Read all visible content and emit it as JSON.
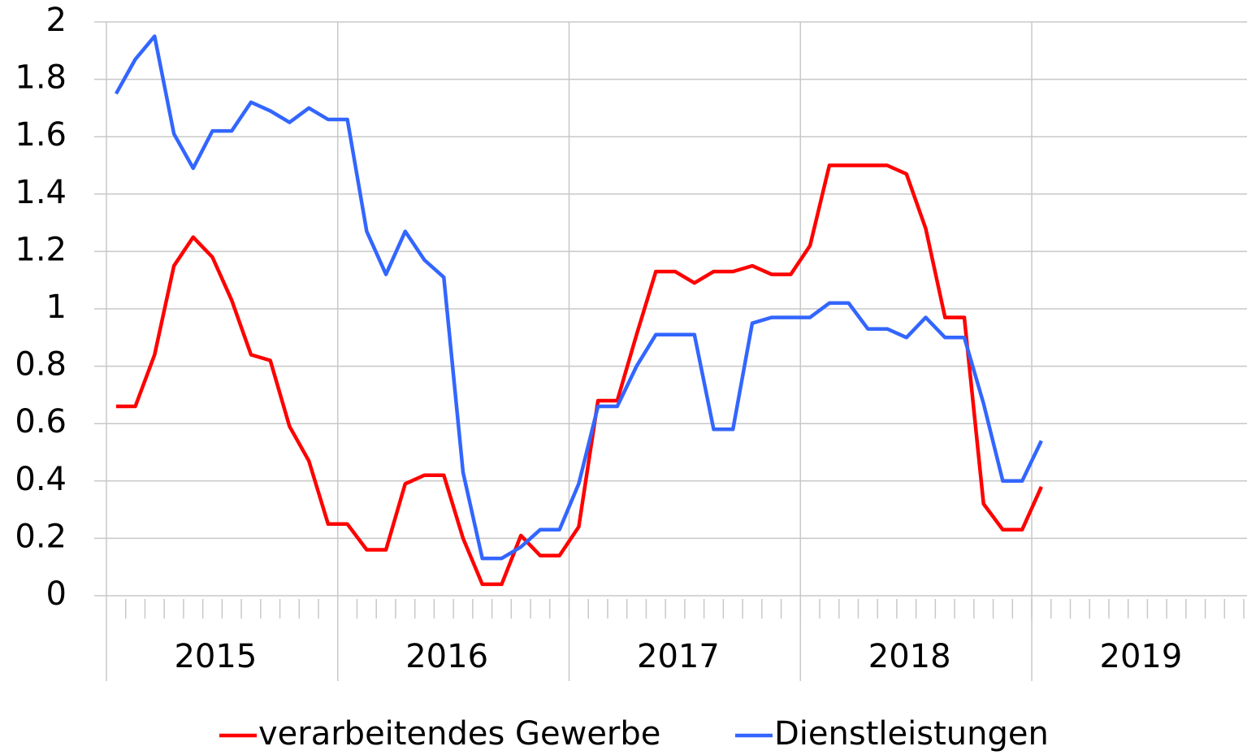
{
  "chart_data": {
    "type": "line",
    "categories": [
      null,
      null,
      null,
      null,
      null,
      null,
      null,
      null,
      null,
      null,
      null,
      null,
      null,
      null,
      null,
      null,
      null,
      null,
      null,
      null,
      null,
      null,
      null,
      null,
      null,
      null,
      null,
      null,
      null,
      null,
      null,
      null,
      null,
      null,
      null,
      null,
      null,
      null,
      null,
      null,
      null,
      null,
      null,
      null,
      null,
      null,
      null,
      null,
      null,
      null,
      null,
      null,
      null,
      null,
      null,
      null,
      null,
      null,
      null,
      null
    ],
    "groups": [
      {
        "label": "2015",
        "size": 12
      },
      {
        "label": "2016",
        "size": 12
      },
      {
        "label": "2017",
        "size": 12
      },
      {
        "label": "2018",
        "size": 12
      },
      {
        "label": "2019",
        "size": 12
      }
    ],
    "series": [
      {
        "name": "verarbeitendes Gewerbe",
        "color": "#ff0000",
        "values": [
          0.66,
          0.66,
          0.84,
          1.15,
          1.25,
          1.18,
          1.03,
          0.84,
          0.82,
          0.59,
          0.47,
          0.25,
          0.25,
          0.16,
          0.16,
          0.39,
          0.42,
          0.42,
          0.2,
          0.04,
          0.04,
          0.21,
          0.14,
          0.14,
          0.24,
          0.68,
          0.68,
          0.91,
          1.13,
          1.13,
          1.09,
          1.13,
          1.13,
          1.15,
          1.12,
          1.12,
          1.22,
          1.5,
          1.5,
          1.5,
          1.5,
          1.47,
          1.28,
          0.97,
          0.97,
          0.32,
          0.23,
          0.23,
          0.38,
          null,
          null,
          null,
          null,
          null,
          null,
          null,
          null,
          null,
          null,
          null
        ]
      },
      {
        "name": "Dienstleistungen",
        "color": "#3366ff",
        "values": [
          1.75,
          1.87,
          1.95,
          1.61,
          1.49,
          1.62,
          1.62,
          1.72,
          1.69,
          1.65,
          1.7,
          1.66,
          1.66,
          1.27,
          1.12,
          1.27,
          1.17,
          1.11,
          0.43,
          0.13,
          0.13,
          0.17,
          0.23,
          0.23,
          0.39,
          0.66,
          0.66,
          0.8,
          0.91,
          0.91,
          0.91,
          0.58,
          0.58,
          0.95,
          0.97,
          0.97,
          0.97,
          1.02,
          1.02,
          0.93,
          0.93,
          0.9,
          0.97,
          0.9,
          0.9,
          0.67,
          0.4,
          0.4,
          0.54,
          null,
          null,
          null,
          null,
          null,
          null,
          null,
          null,
          null,
          null,
          null
        ]
      }
    ],
    "ylim": [
      0,
      2
    ],
    "yticks": [
      0,
      0.2,
      0.4,
      0.6,
      0.8,
      1,
      1.2,
      1.4,
      1.6,
      1.8,
      2
    ],
    "grid": true,
    "legend": "bottom"
  }
}
